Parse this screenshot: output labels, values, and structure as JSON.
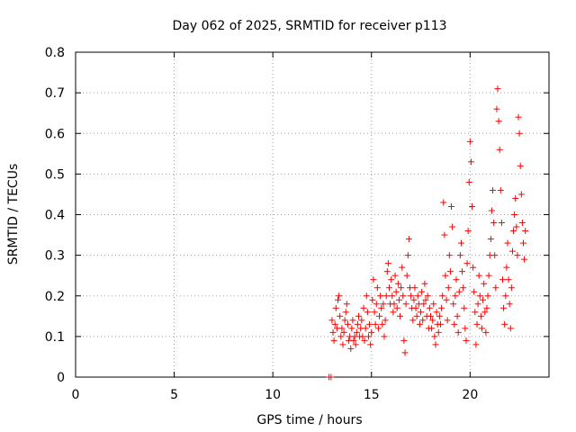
{
  "chart_data": {
    "type": "scatter",
    "title": "Day 062 of 2025, SRMTID for receiver p113",
    "xlabel": "GPS time / hours",
    "ylabel": "SRMTID / TECUs",
    "xlim": [
      0,
      24
    ],
    "ylim": [
      0,
      0.8
    ],
    "xticks": [
      0,
      5,
      10,
      15,
      20
    ],
    "yticks": [
      0,
      0.1,
      0.2,
      0.3,
      0.4,
      0.5,
      0.6,
      0.7,
      0.8
    ],
    "xtick_labels": [
      "0",
      "5",
      "10",
      "15",
      "20"
    ],
    "ytick_labels": [
      "0",
      "0.1",
      "0.2",
      "0.3",
      "0.4",
      "0.5",
      "0.6",
      "0.7",
      "0.8"
    ],
    "grid": true,
    "marker": "plus",
    "color": "#ff0000",
    "series": [
      {
        "name": "SRMTID",
        "points": [
          [
            12.85,
            0.0
          ],
          [
            12.95,
            0.0
          ],
          [
            13.0,
            0.14
          ],
          [
            13.05,
            0.11
          ],
          [
            13.1,
            0.09
          ],
          [
            13.15,
            0.13
          ],
          [
            13.2,
            0.17
          ],
          [
            13.25,
            0.12
          ],
          [
            13.3,
            0.19
          ],
          [
            13.35,
            0.2
          ],
          [
            13.4,
            0.15
          ],
          [
            13.45,
            0.1
          ],
          [
            13.5,
            0.12
          ],
          [
            13.55,
            0.08
          ],
          [
            13.6,
            0.11
          ],
          [
            13.65,
            0.14
          ],
          [
            13.7,
            0.16
          ],
          [
            13.75,
            0.18
          ],
          [
            13.8,
            0.13
          ],
          [
            13.85,
            0.09
          ],
          [
            13.9,
            0.1
          ],
          [
            13.95,
            0.07
          ],
          [
            14.0,
            0.12
          ],
          [
            14.05,
            0.14
          ],
          [
            14.1,
            0.09
          ],
          [
            14.15,
            0.1
          ],
          [
            14.2,
            0.08
          ],
          [
            14.25,
            0.11
          ],
          [
            14.3,
            0.13
          ],
          [
            14.35,
            0.15
          ],
          [
            14.4,
            0.1
          ],
          [
            14.45,
            0.12
          ],
          [
            14.5,
            0.14
          ],
          [
            14.55,
            0.1
          ],
          [
            14.6,
            0.17
          ],
          [
            14.65,
            0.09
          ],
          [
            14.7,
            0.12
          ],
          [
            14.75,
            0.2
          ],
          [
            14.8,
            0.16
          ],
          [
            14.85,
            0.1
          ],
          [
            14.9,
            0.13
          ],
          [
            14.95,
            0.08
          ],
          [
            15.0,
            0.11
          ],
          [
            15.05,
            0.19
          ],
          [
            15.1,
            0.24
          ],
          [
            15.15,
            0.16
          ],
          [
            15.2,
            0.13
          ],
          [
            15.25,
            0.18
          ],
          [
            15.3,
            0.22
          ],
          [
            15.35,
            0.12
          ],
          [
            15.4,
            0.15
          ],
          [
            15.45,
            0.2
          ],
          [
            15.5,
            0.17
          ],
          [
            15.55,
            0.13
          ],
          [
            15.6,
            0.18
          ],
          [
            15.65,
            0.1
          ],
          [
            15.7,
            0.14
          ],
          [
            15.75,
            0.2
          ],
          [
            15.8,
            0.26
          ],
          [
            15.85,
            0.28
          ],
          [
            15.9,
            0.22
          ],
          [
            15.95,
            0.18
          ],
          [
            16.0,
            0.24
          ],
          [
            16.05,
            0.2
          ],
          [
            16.1,
            0.16
          ],
          [
            16.15,
            0.18
          ],
          [
            16.2,
            0.25
          ],
          [
            16.25,
            0.21
          ],
          [
            16.3,
            0.17
          ],
          [
            16.35,
            0.23
          ],
          [
            16.4,
            0.19
          ],
          [
            16.45,
            0.15
          ],
          [
            16.5,
            0.22
          ],
          [
            16.55,
            0.27
          ],
          [
            16.6,
            0.2
          ],
          [
            16.65,
            0.09
          ],
          [
            16.7,
            0.06
          ],
          [
            16.75,
            0.18
          ],
          [
            16.8,
            0.25
          ],
          [
            16.85,
            0.3
          ],
          [
            16.9,
            0.34
          ],
          [
            16.95,
            0.22
          ],
          [
            17.0,
            0.2
          ],
          [
            17.05,
            0.17
          ],
          [
            17.1,
            0.14
          ],
          [
            17.15,
            0.19
          ],
          [
            17.2,
            0.22
          ],
          [
            17.25,
            0.17
          ],
          [
            17.3,
            0.15
          ],
          [
            17.35,
            0.2
          ],
          [
            17.4,
            0.18
          ],
          [
            17.45,
            0.13
          ],
          [
            17.5,
            0.16
          ],
          [
            17.55,
            0.21
          ],
          [
            17.6,
            0.14
          ],
          [
            17.65,
            0.18
          ],
          [
            17.7,
            0.23
          ],
          [
            17.75,
            0.19
          ],
          [
            17.8,
            0.15
          ],
          [
            17.85,
            0.2
          ],
          [
            17.9,
            0.12
          ],
          [
            17.95,
            0.17
          ],
          [
            18.0,
            0.15
          ],
          [
            18.05,
            0.12
          ],
          [
            18.1,
            0.14
          ],
          [
            18.15,
            0.18
          ],
          [
            18.2,
            0.1
          ],
          [
            18.25,
            0.08
          ],
          [
            18.3,
            0.16
          ],
          [
            18.35,
            0.13
          ],
          [
            18.4,
            0.11
          ],
          [
            18.45,
            0.15
          ],
          [
            18.5,
            0.13
          ],
          [
            18.55,
            0.17
          ],
          [
            18.6,
            0.2
          ],
          [
            18.65,
            0.43
          ],
          [
            18.7,
            0.35
          ],
          [
            18.75,
            0.25
          ],
          [
            18.8,
            0.19
          ],
          [
            18.85,
            0.14
          ],
          [
            18.9,
            0.22
          ],
          [
            18.95,
            0.3
          ],
          [
            19.0,
            0.26
          ],
          [
            19.05,
            0.42
          ],
          [
            19.1,
            0.37
          ],
          [
            19.15,
            0.18
          ],
          [
            19.2,
            0.13
          ],
          [
            19.25,
            0.2
          ],
          [
            19.3,
            0.24
          ],
          [
            19.35,
            0.15
          ],
          [
            19.4,
            0.11
          ],
          [
            19.45,
            0.21
          ],
          [
            19.5,
            0.3
          ],
          [
            19.55,
            0.33
          ],
          [
            19.6,
            0.26
          ],
          [
            19.65,
            0.22
          ],
          [
            19.7,
            0.17
          ],
          [
            19.75,
            0.12
          ],
          [
            19.8,
            0.09
          ],
          [
            19.85,
            0.28
          ],
          [
            19.9,
            0.36
          ],
          [
            19.95,
            0.48
          ],
          [
            20.0,
            0.58
          ],
          [
            20.05,
            0.53
          ],
          [
            20.1,
            0.42
          ],
          [
            20.15,
            0.27
          ],
          [
            20.2,
            0.21
          ],
          [
            20.25,
            0.16
          ],
          [
            20.3,
            0.08
          ],
          [
            20.35,
            0.13
          ],
          [
            20.4,
            0.18
          ],
          [
            20.45,
            0.25
          ],
          [
            20.5,
            0.2
          ],
          [
            20.55,
            0.15
          ],
          [
            20.6,
            0.12
          ],
          [
            20.65,
            0.19
          ],
          [
            20.7,
            0.23
          ],
          [
            20.75,
            0.16
          ],
          [
            20.8,
            0.11
          ],
          [
            20.85,
            0.17
          ],
          [
            20.9,
            0.2
          ],
          [
            20.95,
            0.25
          ],
          [
            21.0,
            0.3
          ],
          [
            21.05,
            0.34
          ],
          [
            21.1,
            0.41
          ],
          [
            21.15,
            0.46
          ],
          [
            21.2,
            0.38
          ],
          [
            21.25,
            0.3
          ],
          [
            21.3,
            0.22
          ],
          [
            21.35,
            0.66
          ],
          [
            21.4,
            0.71
          ],
          [
            21.45,
            0.63
          ],
          [
            21.5,
            0.56
          ],
          [
            21.55,
            0.46
          ],
          [
            21.6,
            0.38
          ],
          [
            21.65,
            0.24
          ],
          [
            21.7,
            0.17
          ],
          [
            21.75,
            0.13
          ],
          [
            21.8,
            0.2
          ],
          [
            21.85,
            0.27
          ],
          [
            21.9,
            0.33
          ],
          [
            21.95,
            0.24
          ],
          [
            22.0,
            0.18
          ],
          [
            22.05,
            0.12
          ],
          [
            22.1,
            0.22
          ],
          [
            22.15,
            0.31
          ],
          [
            22.2,
            0.36
          ],
          [
            22.25,
            0.4
          ],
          [
            22.3,
            0.44
          ],
          [
            22.35,
            0.37
          ],
          [
            22.4,
            0.3
          ],
          [
            22.45,
            0.64
          ],
          [
            22.5,
            0.6
          ],
          [
            22.55,
            0.52
          ],
          [
            22.6,
            0.45
          ],
          [
            22.65,
            0.38
          ],
          [
            22.7,
            0.33
          ],
          [
            22.75,
            0.29
          ],
          [
            22.8,
            0.36
          ]
        ]
      }
    ]
  }
}
